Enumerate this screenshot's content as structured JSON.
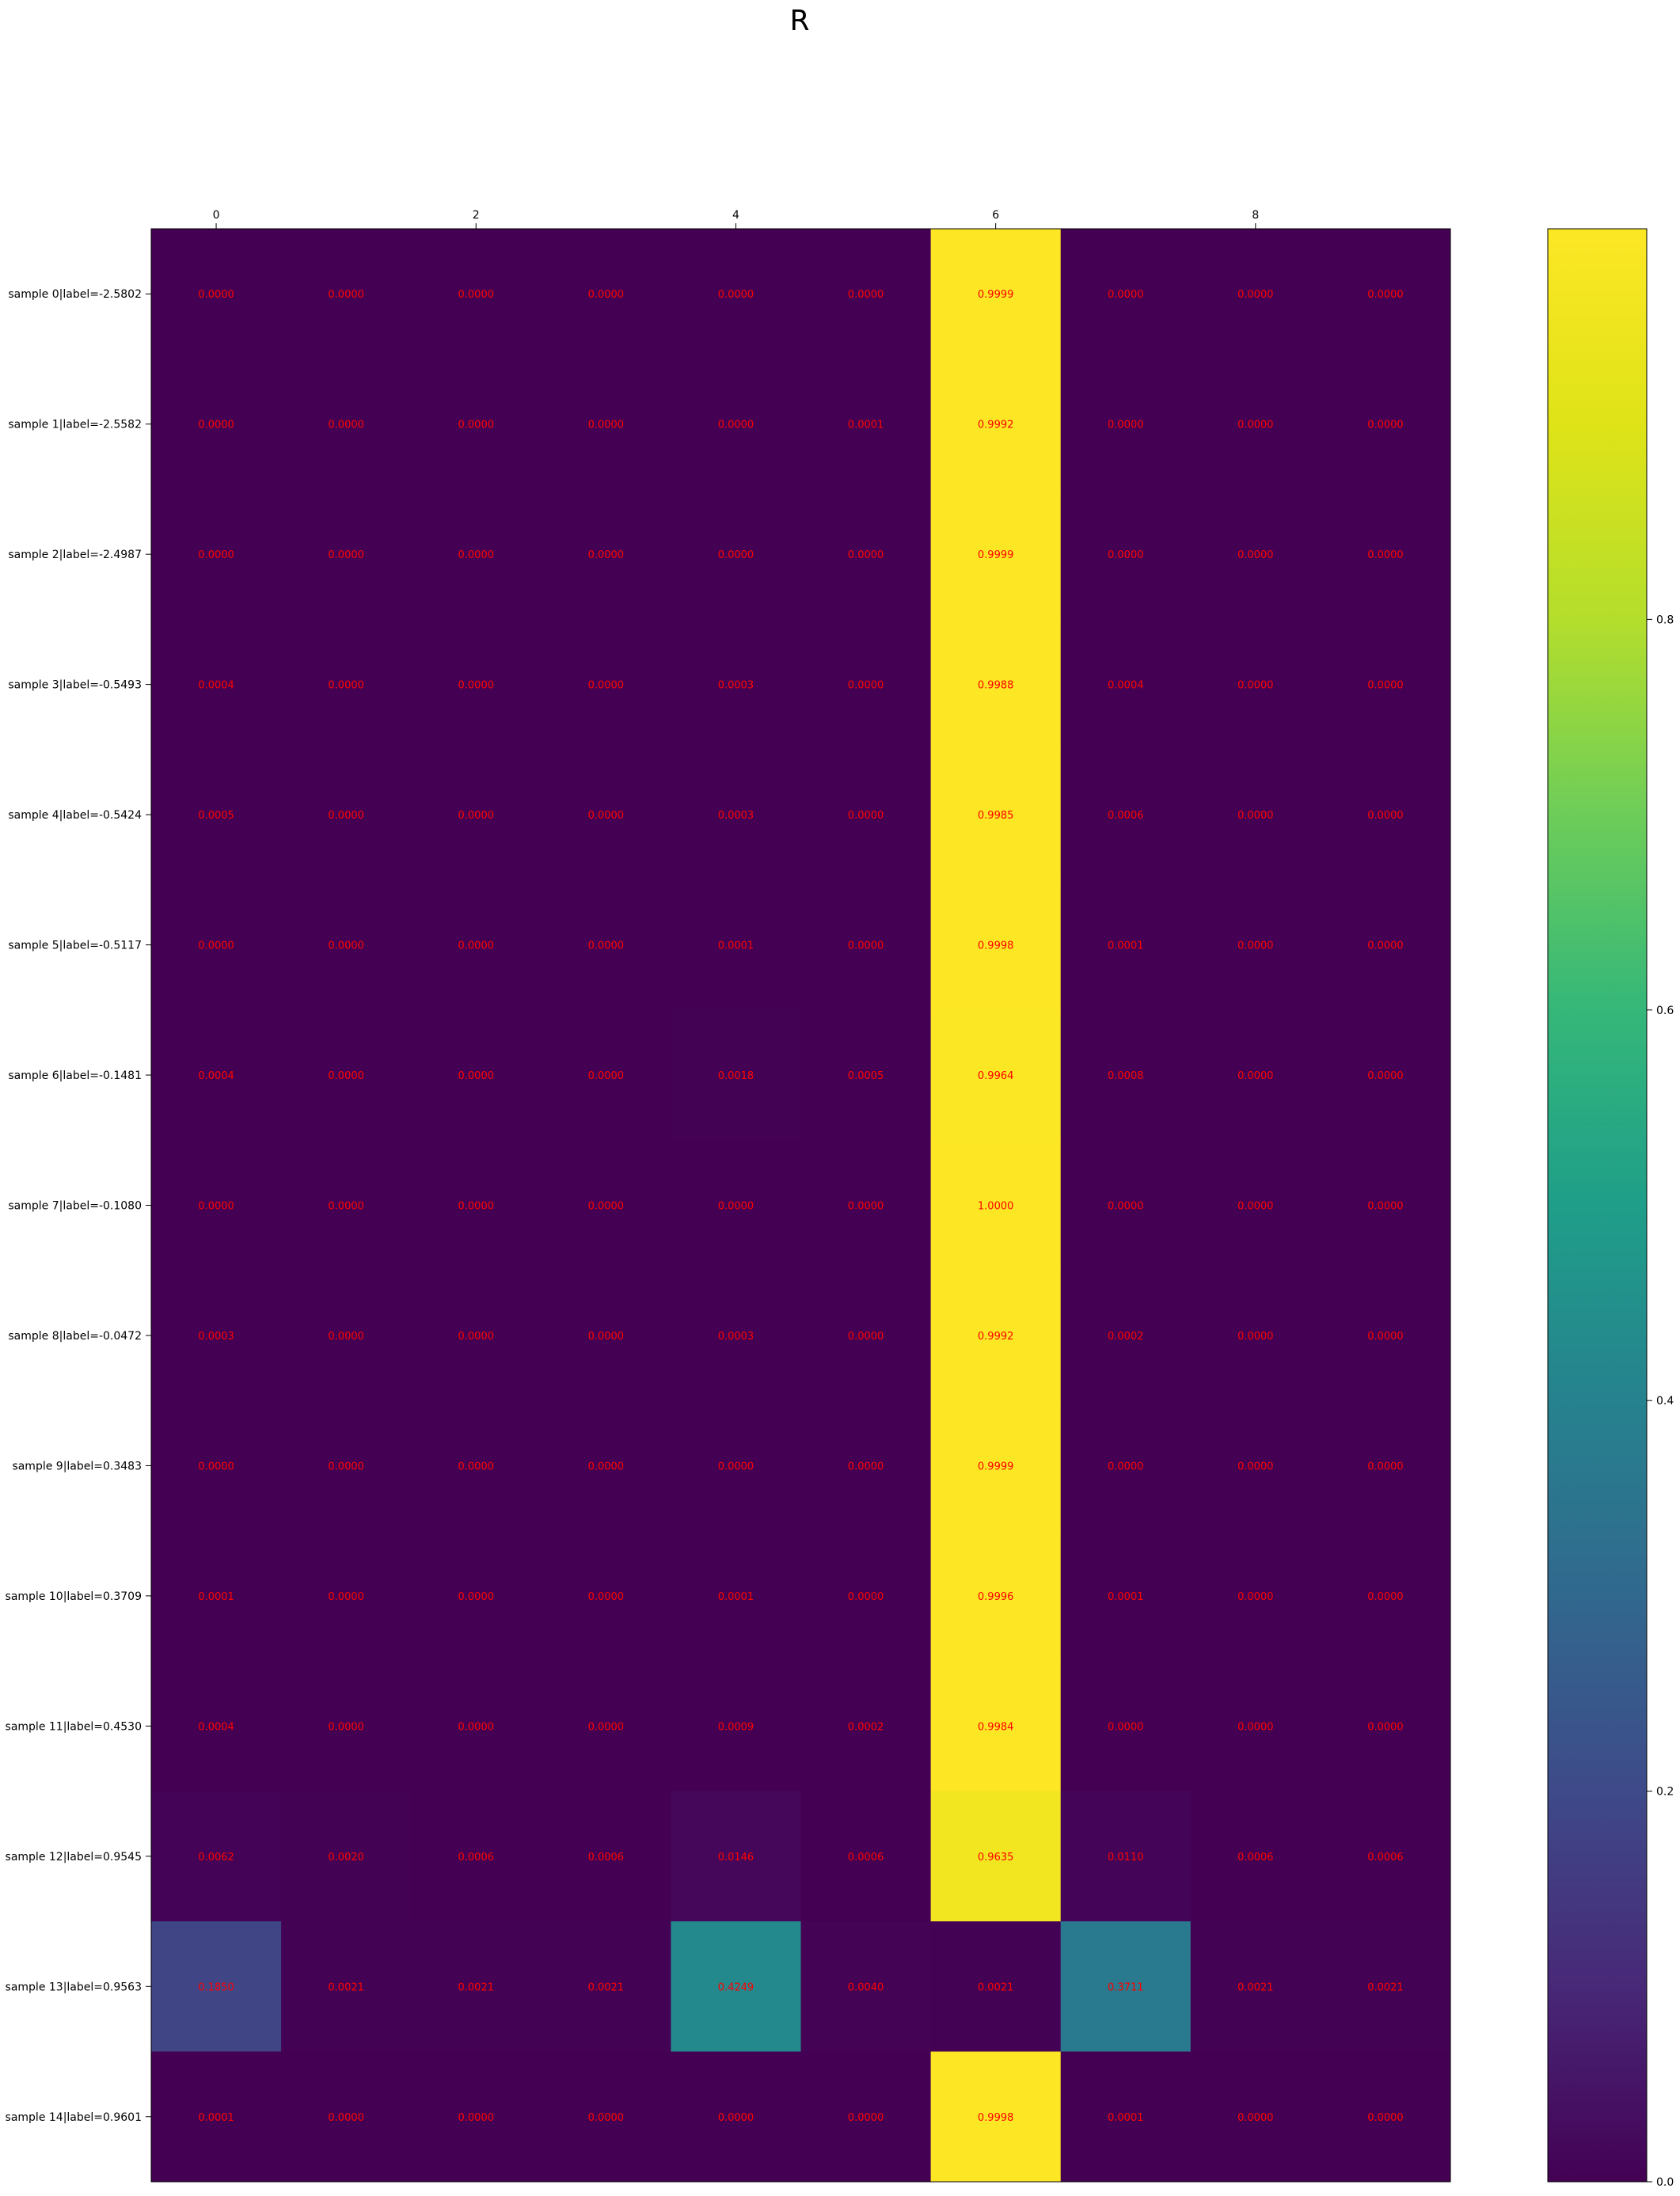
{
  "chart_data": {
    "type": "heatmap",
    "title": "R",
    "colormap": "viridis",
    "cell_text_color": "#ff0000",
    "x_ticks": [
      0,
      2,
      4,
      6,
      8
    ],
    "x_tick_labels": [
      "0",
      "2",
      "4",
      "6",
      "8"
    ],
    "columns": 10,
    "rows": [
      "sample 0|label=-2.5802",
      "sample 1|label=-2.5582",
      "sample 2|label=-2.4987",
      "sample 3|label=-0.5493",
      "sample 4|label=-0.5424",
      "sample 5|label=-0.5117",
      "sample 6|label=-0.1481",
      "sample 7|label=-0.1080",
      "sample 8|label=-0.0472",
      "sample 9|label=0.3483",
      "sample 10|label=0.3709",
      "sample 11|label=0.4530",
      "sample 12|label=0.9545",
      "sample 13|label=0.9563",
      "sample 14|label=0.9601"
    ],
    "values": [
      [
        0.0,
        0.0,
        0.0,
        0.0,
        0.0,
        0.0,
        0.9999,
        0.0,
        0.0,
        0.0
      ],
      [
        0.0,
        0.0,
        0.0,
        0.0,
        0.0,
        0.0001,
        0.9992,
        0.0,
        0.0,
        0.0
      ],
      [
        0.0,
        0.0,
        0.0,
        0.0,
        0.0,
        0.0,
        0.9999,
        0.0,
        0.0,
        0.0
      ],
      [
        0.0004,
        0.0,
        0.0,
        0.0,
        0.0003,
        0.0,
        0.9988,
        0.0004,
        0.0,
        0.0
      ],
      [
        0.0005,
        0.0,
        0.0,
        0.0,
        0.0003,
        0.0,
        0.9985,
        0.0006,
        0.0,
        0.0
      ],
      [
        0.0,
        0.0,
        0.0,
        0.0,
        0.0001,
        0.0,
        0.9998,
        0.0001,
        0.0,
        0.0
      ],
      [
        0.0004,
        0.0,
        0.0,
        0.0,
        0.0018,
        0.0005,
        0.9964,
        0.0008,
        0.0,
        0.0
      ],
      [
        0.0,
        0.0,
        0.0,
        0.0,
        0.0,
        0.0,
        1.0,
        0.0,
        0.0,
        0.0
      ],
      [
        0.0003,
        0.0,
        0.0,
        0.0,
        0.0003,
        0.0,
        0.9992,
        0.0002,
        0.0,
        0.0
      ],
      [
        0.0,
        0.0,
        0.0,
        0.0,
        0.0,
        0.0,
        0.9999,
        0.0,
        0.0,
        0.0
      ],
      [
        0.0001,
        0.0,
        0.0,
        0.0,
        0.0001,
        0.0,
        0.9996,
        0.0001,
        0.0,
        0.0
      ],
      [
        0.0004,
        0.0,
        0.0,
        0.0,
        0.0009,
        0.0002,
        0.9984,
        0.0,
        0.0,
        0.0
      ],
      [
        0.0062,
        0.002,
        0.0006,
        0.0006,
        0.0146,
        0.0006,
        0.9635,
        0.011,
        0.0006,
        0.0006
      ],
      [
        0.185,
        0.0021,
        0.0021,
        0.0021,
        0.4249,
        0.004,
        0.0021,
        0.3711,
        0.0021,
        0.0021
      ],
      [
        0.0001,
        0.0,
        0.0,
        0.0,
        0.0,
        0.0,
        0.9998,
        0.0001,
        0.0,
        0.0
      ]
    ],
    "colorbar": {
      "vmin": 0.0,
      "vmax": 1.0,
      "ticks": [
        0.0,
        0.2,
        0.4,
        0.6,
        0.8
      ],
      "tick_labels": [
        "0.0",
        "0.2",
        "0.4",
        "0.6",
        "0.8"
      ]
    }
  }
}
